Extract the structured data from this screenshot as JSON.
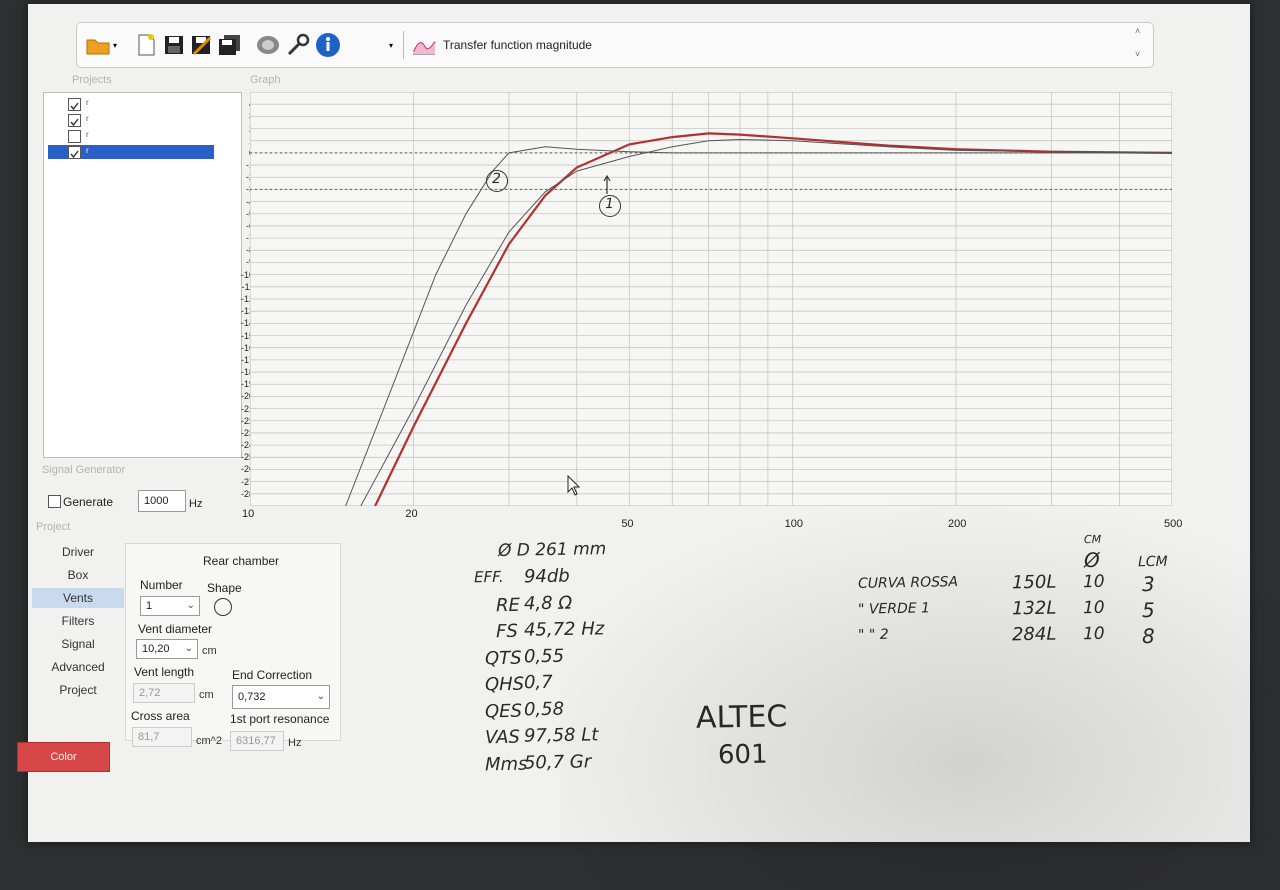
{
  "toolbar": {
    "icons": [
      "open-folder-icon",
      "new-file-icon",
      "save-icon",
      "save-as-icon",
      "save-all-icon",
      "speaker-icon",
      "settings-wrench-icon",
      "info-icon"
    ],
    "view_label": "Transfer function magnitude",
    "view_icon": "graph-icon"
  },
  "projects": {
    "title": "Projects",
    "items": [
      {
        "label": "r",
        "checked": true,
        "selected": false
      },
      {
        "label": "r",
        "checked": true,
        "selected": false
      },
      {
        "label": "r",
        "checked": false,
        "selected": false
      },
      {
        "label": "r",
        "checked": true,
        "selected": true
      }
    ]
  },
  "graph": {
    "title": "Graph",
    "y_ticks": [
      "4",
      "3",
      "2",
      "1",
      "0",
      "-1",
      "-2",
      "-3",
      "-4",
      "-5",
      "-6",
      "-7",
      "-8",
      "-9",
      "-10",
      "-11",
      "-12",
      "-13",
      "-14",
      "-15",
      "-16",
      "-17",
      "-18",
      "-19",
      "-20",
      "-21",
      "-22",
      "-23",
      "-24",
      "-25",
      "-26",
      "-27",
      "-28"
    ],
    "x_ticks": [
      "10",
      "20",
      "50",
      "100",
      "200",
      "500"
    ]
  },
  "chart_data": {
    "type": "line",
    "xscale": "log",
    "xlim": [
      10,
      500
    ],
    "ylim": [
      -29,
      5
    ],
    "reference_lines": [
      0,
      -3
    ],
    "grid": true,
    "series": [
      {
        "color": "#b33030",
        "x": [
          17,
          20,
          25,
          30,
          35,
          40,
          50,
          60,
          70,
          80,
          100,
          150,
          200,
          300,
          500
        ],
        "y": [
          -29,
          -22.5,
          -14,
          -7.5,
          -3.5,
          -1.2,
          0.7,
          1.3,
          1.6,
          1.5,
          1.2,
          0.6,
          0.3,
          0.1,
          0
        ]
      },
      {
        "color": "#555555",
        "x": [
          16,
          20,
          25,
          30,
          35,
          40,
          50,
          60,
          70,
          80,
          100,
          150,
          200,
          300,
          500
        ],
        "y": [
          -29,
          -21,
          -12.5,
          -6.5,
          -3.2,
          -1.5,
          -0.3,
          0.5,
          1.0,
          1.1,
          1.0,
          0.5,
          0.2,
          0.1,
          0
        ]
      },
      {
        "color": "#555555",
        "x": [
          15,
          18,
          22,
          25,
          28,
          30,
          35,
          40,
          50,
          60,
          100,
          200,
          500
        ],
        "y": [
          -29,
          -20,
          -10,
          -5,
          -1.5,
          0,
          0.5,
          0.3,
          0.1,
          0,
          0,
          0,
          0
        ]
      }
    ]
  },
  "signal_generator": {
    "title": "Signal Generator",
    "generate_label": "Generate",
    "generate_checked": false,
    "frequency": "1000",
    "unit": "Hz"
  },
  "project_nav": {
    "title": "Project",
    "items": [
      "Driver",
      "Box",
      "Vents",
      "Filters",
      "Signal",
      "Advanced",
      "Project"
    ],
    "selected": "Vents",
    "color_button": "Color",
    "color_value": "#d74747"
  },
  "vents": {
    "rear_chamber": "Rear chamber",
    "number_label": "Number",
    "number_value": "1",
    "shape_label": "Shape",
    "diameter_label": "Vent diameter",
    "diameter_value": "10,20",
    "diameter_unit": "cm",
    "length_label": "Vent length",
    "length_value": "2,72",
    "length_unit": "cm",
    "end_corr_label": "End Correction",
    "end_corr_value": "0,732",
    "cross_label": "Cross area",
    "cross_value": "81,7",
    "cross_unit": "cm^2",
    "resonance_label": "1st port resonance",
    "resonance_value": "6316,77",
    "resonance_unit": "Hz"
  },
  "handwriting": {
    "curve_2": "2",
    "curve_1": "1",
    "diam": "Ø D 261 mm",
    "specs": [
      {
        "k": "EFF.",
        "v": "94db"
      },
      {
        "k": "RE",
        "v": "4,8 Ω"
      },
      {
        "k": "FS",
        "v": "45,72 Hz"
      },
      {
        "k": "QTS",
        "v": "0,55"
      },
      {
        "k": "QHS",
        "v": "0,7"
      },
      {
        "k": "QES",
        "v": "0,58"
      },
      {
        "k": "VAS",
        "v": "97,58 Lt"
      },
      {
        "k": "Mms",
        "v": "50,7 Gr"
      }
    ],
    "brand": "ALTEC",
    "model": "601",
    "col_cm": "CM",
    "col_diam": "Ø",
    "col_lcm": "LCM",
    "rows": [
      {
        "name": "CURVA ROSSA",
        "vol": "150L",
        "d": "10",
        "l": "3"
      },
      {
        "name": "\"   VERDE 1",
        "vol": "132L",
        "d": "10",
        "l": "5"
      },
      {
        "name": "\"   \"   2",
        "vol": "284L",
        "d": "10",
        "l": "8"
      }
    ]
  }
}
